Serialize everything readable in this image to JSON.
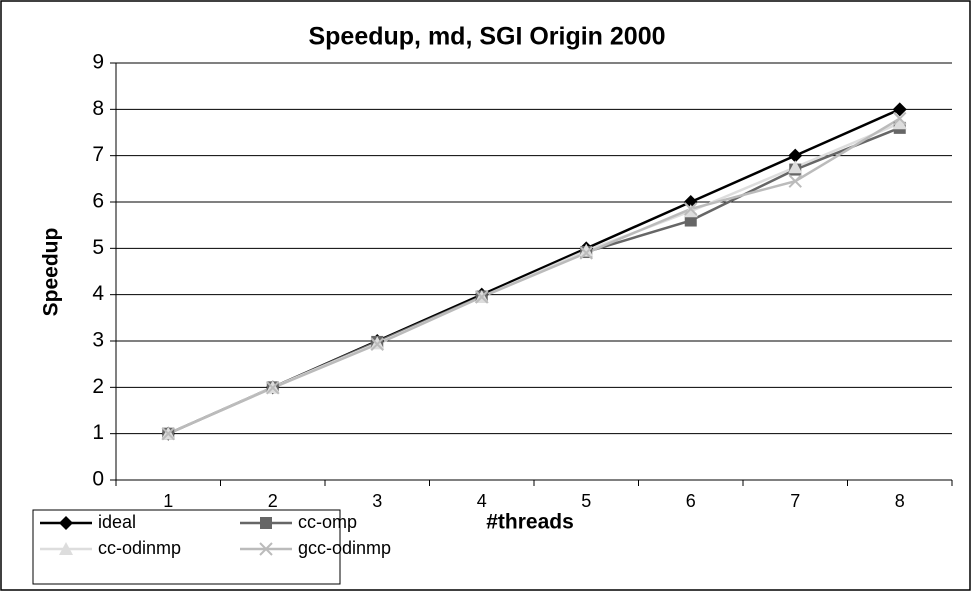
{
  "chart_data": {
    "type": "line",
    "title": "Speedup, md, SGI Origin 2000",
    "x_label": "#threads",
    "y_label": "Speedup",
    "categories": [
      "1",
      "2",
      "3",
      "4",
      "5",
      "6",
      "7",
      "8"
    ],
    "series": [
      {
        "name": "ideal",
        "color": "#000000",
        "marker": "diamond",
        "values": [
          1,
          2,
          3,
          4,
          5,
          6,
          7,
          8
        ]
      },
      {
        "name": "cc-omp",
        "color": "#666666",
        "marker": "square",
        "values": [
          1,
          2,
          2.98,
          3.96,
          4.92,
          5.6,
          6.7,
          7.6
        ]
      },
      {
        "name": "cc-odinmp",
        "color": "#dddddd",
        "marker": "triangle",
        "values": [
          1,
          2,
          2.95,
          3.95,
          4.95,
          5.8,
          6.75,
          7.7
        ]
      },
      {
        "name": "gcc-odinmp",
        "color": "#bbbbbb",
        "marker": "x",
        "values": [
          1,
          1.99,
          2.93,
          3.95,
          4.9,
          5.85,
          6.45,
          7.8
        ]
      }
    ],
    "ylim": [
      0,
      9
    ],
    "yticks": [
      0,
      1,
      2,
      3,
      4,
      5,
      6,
      7,
      8,
      9
    ],
    "grid": true,
    "legend": "bottom-left"
  }
}
